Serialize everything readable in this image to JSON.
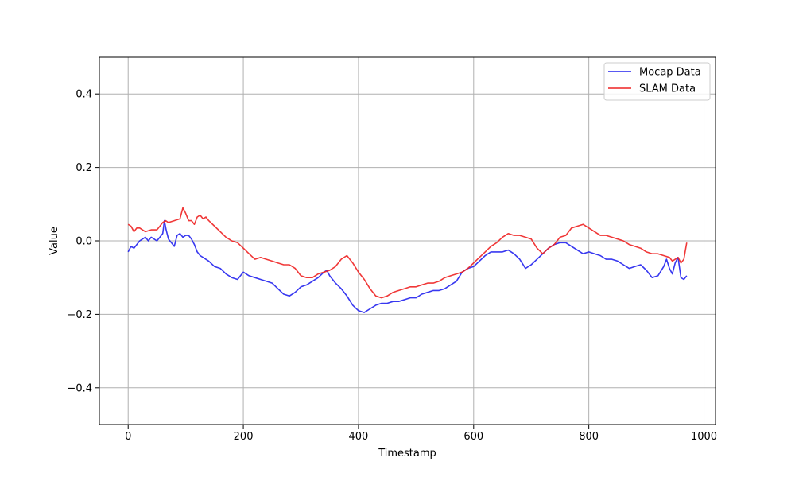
{
  "chart_data": {
    "type": "line",
    "title": "",
    "xlabel": "Timestamp",
    "ylabel": "Value",
    "xlim": [
      -50,
      1020
    ],
    "ylim": [
      -0.5,
      0.5
    ],
    "xticks": [
      0,
      200,
      400,
      600,
      800,
      1000
    ],
    "yticks": [
      -0.4,
      -0.2,
      0.0,
      0.2,
      0.4
    ],
    "xtick_labels": [
      "0",
      "200",
      "400",
      "600",
      "800",
      "1000"
    ],
    "ytick_labels": [
      "−0.4",
      "−0.2",
      "0.0",
      "0.2",
      "0.4"
    ],
    "grid": true,
    "legend_position": "top-right",
    "series": [
      {
        "name": "Mocap Data",
        "color": "#2222ee",
        "x": [
          0,
          5,
          10,
          20,
          25,
          30,
          35,
          40,
          45,
          50,
          55,
          60,
          63,
          66,
          70,
          75,
          80,
          85,
          90,
          95,
          100,
          105,
          110,
          115,
          120,
          125,
          130,
          140,
          150,
          160,
          170,
          180,
          190,
          200,
          210,
          220,
          230,
          240,
          250,
          260,
          270,
          280,
          290,
          300,
          310,
          320,
          330,
          340,
          345,
          350,
          360,
          370,
          380,
          390,
          400,
          410,
          420,
          430,
          440,
          450,
          460,
          470,
          480,
          490,
          500,
          510,
          520,
          530,
          540,
          550,
          560,
          570,
          580,
          590,
          600,
          610,
          620,
          630,
          640,
          650,
          660,
          670,
          680,
          690,
          700,
          710,
          720,
          730,
          740,
          750,
          760,
          770,
          780,
          790,
          800,
          810,
          820,
          830,
          840,
          850,
          860,
          870,
          880,
          890,
          900,
          910,
          920,
          930,
          935,
          940,
          945,
          950,
          955,
          960,
          965,
          970
        ],
        "y": [
          -0.03,
          -0.015,
          -0.02,
          0.0,
          0.005,
          0.01,
          0.0,
          0.01,
          0.005,
          0.0,
          0.01,
          0.02,
          0.055,
          0.03,
          0.005,
          -0.005,
          -0.015,
          0.015,
          0.02,
          0.01,
          0.015,
          0.015,
          0.005,
          -0.01,
          -0.03,
          -0.04,
          -0.045,
          -0.055,
          -0.07,
          -0.075,
          -0.09,
          -0.1,
          -0.105,
          -0.085,
          -0.095,
          -0.1,
          -0.105,
          -0.11,
          -0.115,
          -0.13,
          -0.145,
          -0.15,
          -0.14,
          -0.125,
          -0.12,
          -0.11,
          -0.1,
          -0.085,
          -0.08,
          -0.095,
          -0.115,
          -0.13,
          -0.15,
          -0.175,
          -0.19,
          -0.195,
          -0.185,
          -0.175,
          -0.17,
          -0.17,
          -0.165,
          -0.165,
          -0.16,
          -0.155,
          -0.155,
          -0.145,
          -0.14,
          -0.135,
          -0.135,
          -0.13,
          -0.12,
          -0.11,
          -0.085,
          -0.075,
          -0.07,
          -0.055,
          -0.04,
          -0.03,
          -0.03,
          -0.03,
          -0.025,
          -0.035,
          -0.05,
          -0.075,
          -0.065,
          -0.05,
          -0.035,
          -0.02,
          -0.01,
          -0.005,
          -0.005,
          -0.015,
          -0.025,
          -0.035,
          -0.03,
          -0.035,
          -0.04,
          -0.05,
          -0.05,
          -0.055,
          -0.065,
          -0.075,
          -0.07,
          -0.065,
          -0.08,
          -0.1,
          -0.095,
          -0.07,
          -0.05,
          -0.075,
          -0.09,
          -0.06,
          -0.045,
          -0.1,
          -0.105,
          -0.095
        ]
      },
      {
        "name": "SLAM Data",
        "color": "#ee2222",
        "x": [
          0,
          5,
          10,
          15,
          20,
          30,
          40,
          50,
          55,
          60,
          65,
          70,
          80,
          90,
          95,
          100,
          105,
          110,
          115,
          120,
          125,
          130,
          135,
          140,
          150,
          160,
          170,
          180,
          190,
          200,
          210,
          220,
          230,
          240,
          250,
          260,
          270,
          280,
          290,
          300,
          310,
          320,
          330,
          340,
          350,
          360,
          370,
          380,
          390,
          400,
          410,
          420,
          430,
          440,
          450,
          460,
          470,
          480,
          490,
          500,
          510,
          520,
          530,
          540,
          550,
          560,
          570,
          580,
          590,
          600,
          610,
          620,
          630,
          640,
          650,
          660,
          670,
          680,
          690,
          700,
          710,
          720,
          730,
          740,
          750,
          760,
          770,
          780,
          790,
          800,
          810,
          820,
          830,
          840,
          850,
          860,
          870,
          880,
          890,
          900,
          910,
          920,
          930,
          940,
          945,
          950,
          955,
          960,
          965,
          970
        ],
        "y": [
          0.045,
          0.04,
          0.025,
          0.035,
          0.035,
          0.025,
          0.03,
          0.03,
          0.04,
          0.05,
          0.055,
          0.05,
          0.055,
          0.06,
          0.09,
          0.075,
          0.055,
          0.055,
          0.045,
          0.065,
          0.07,
          0.06,
          0.065,
          0.055,
          0.04,
          0.025,
          0.01,
          0.0,
          -0.005,
          -0.02,
          -0.035,
          -0.05,
          -0.045,
          -0.05,
          -0.055,
          -0.06,
          -0.065,
          -0.065,
          -0.075,
          -0.095,
          -0.1,
          -0.1,
          -0.09,
          -0.085,
          -0.08,
          -0.07,
          -0.05,
          -0.04,
          -0.06,
          -0.085,
          -0.105,
          -0.13,
          -0.15,
          -0.155,
          -0.15,
          -0.14,
          -0.135,
          -0.13,
          -0.125,
          -0.125,
          -0.12,
          -0.115,
          -0.115,
          -0.11,
          -0.1,
          -0.095,
          -0.09,
          -0.085,
          -0.075,
          -0.06,
          -0.045,
          -0.03,
          -0.015,
          -0.005,
          0.01,
          0.02,
          0.015,
          0.015,
          0.01,
          0.005,
          -0.02,
          -0.035,
          -0.02,
          -0.01,
          0.01,
          0.015,
          0.035,
          0.04,
          0.045,
          0.035,
          0.025,
          0.015,
          0.015,
          0.01,
          0.005,
          0.0,
          -0.01,
          -0.015,
          -0.02,
          -0.03,
          -0.035,
          -0.035,
          -0.04,
          -0.045,
          -0.055,
          -0.05,
          -0.045,
          -0.06,
          -0.05,
          -0.005
        ]
      }
    ]
  }
}
